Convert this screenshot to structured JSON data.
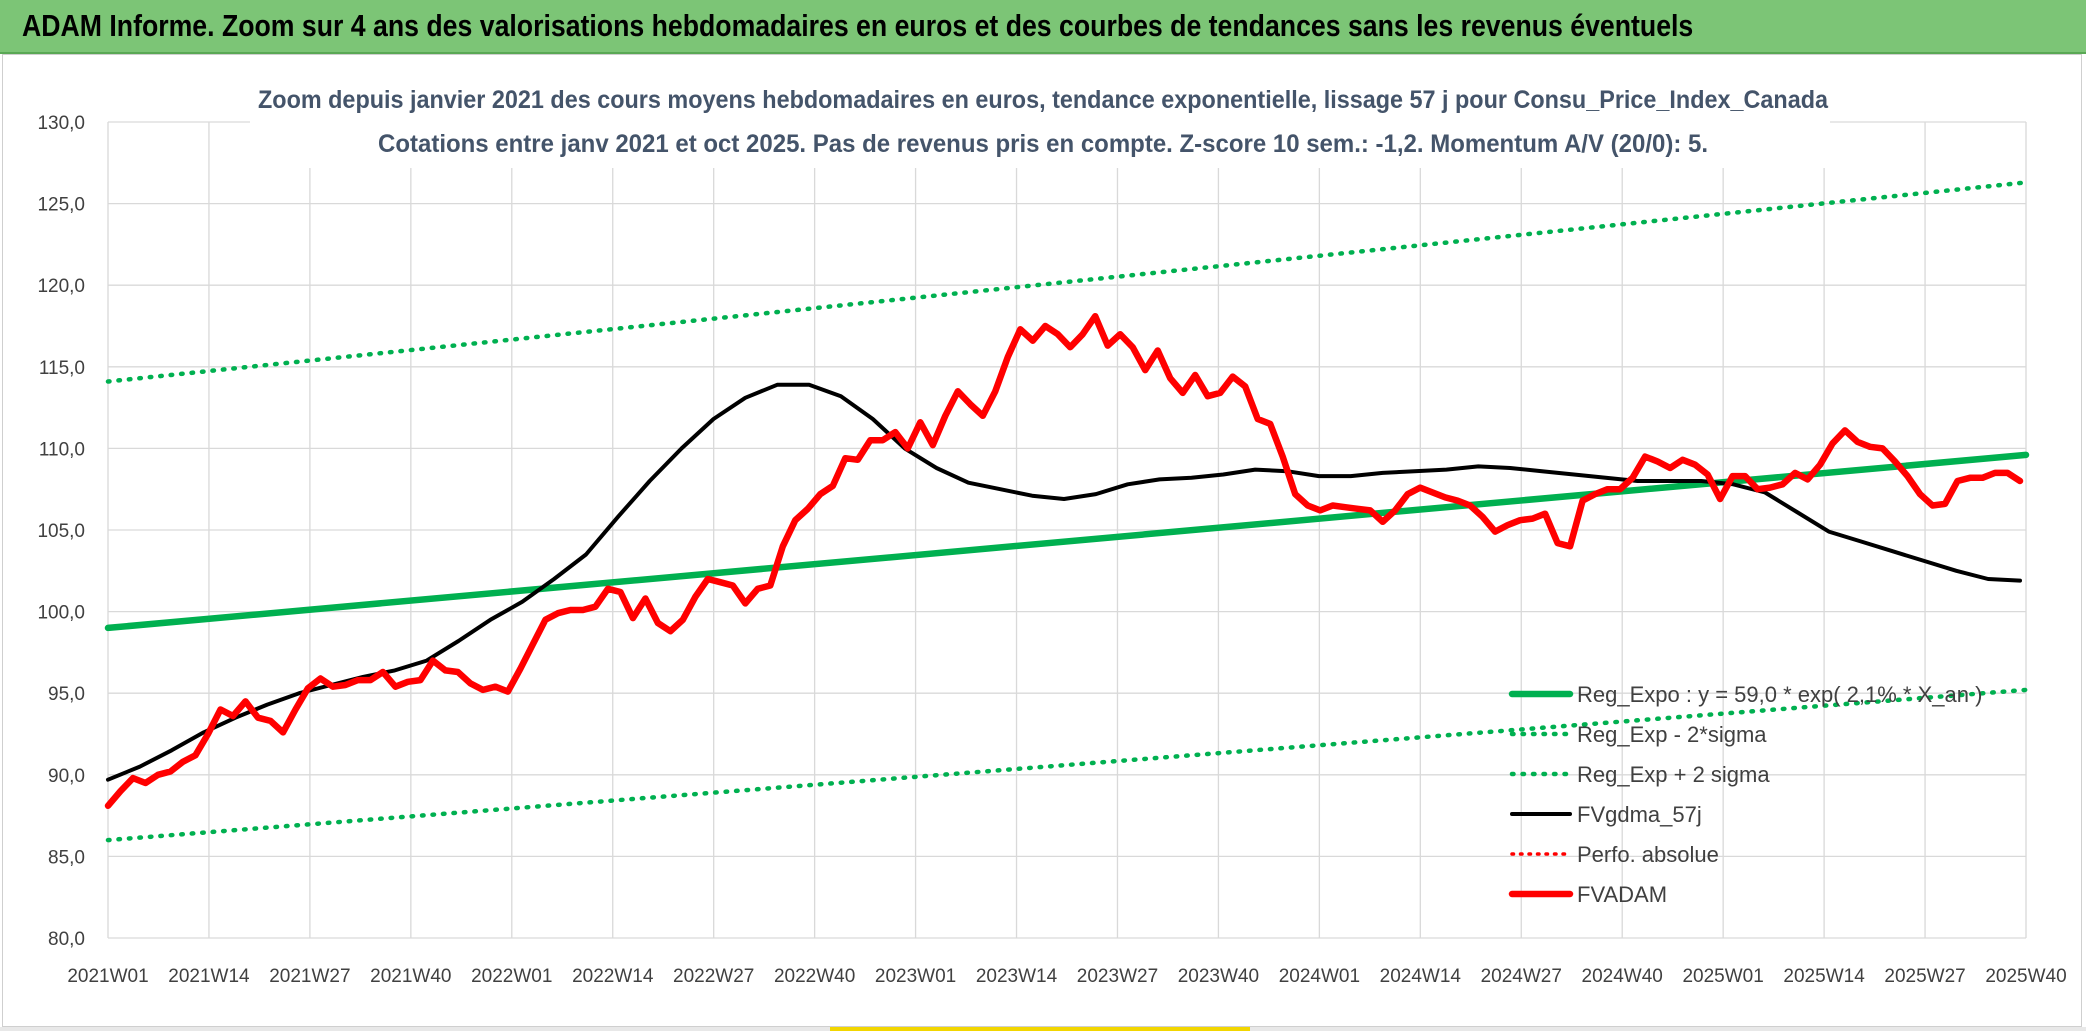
{
  "header": {
    "title": "ADAM Informe. Zoom sur 4 ans des valorisations hebdomadaires en euros et des courbes de tendances sans les revenus éventuels"
  },
  "colors": {
    "banner": "#7cc576",
    "reg_expo": "#00b050",
    "fvgdma": "#000000",
    "fvadam": "#ff0000",
    "perfo": "#ff0000",
    "grid": "#d9d9d9"
  },
  "chart_data": {
    "type": "line",
    "title": [
      "Zoom depuis janvier 2021 des cours moyens hebdomadaires en euros, tendance exponentielle, lissage 57 j pour Consu_Price_Index_Canada",
      "Cotations entre janv 2021 et oct 2025. Pas de revenus pris en compte. Z-score 10 sem.: -1,2. Momentum A/V (20/0): 5."
    ],
    "xlabel": "",
    "ylabel": "",
    "ylim": [
      80,
      130
    ],
    "y_ticks": [
      "80,0",
      "85,0",
      "90,0",
      "95,0",
      "100,0",
      "105,0",
      "110,0",
      "115,0",
      "120,0",
      "125,0",
      "130,0"
    ],
    "x_ticks": [
      "2021W01",
      "2021W14",
      "2021W27",
      "2021W40",
      "2022W01",
      "2022W14",
      "2022W27",
      "2022W40",
      "2023W01",
      "2023W14",
      "2023W27",
      "2023W40",
      "2024W01",
      "2024W14",
      "2024W27",
      "2024W40",
      "2025W01",
      "2025W14",
      "2025W27",
      "2025W40"
    ],
    "n_weeks": 248,
    "grid": true,
    "legend_position": "bottom-right",
    "series": [
      {
        "name": "Reg_Expo : y = 59,0 * exp( 2,1% * X_an )",
        "style": "solid-green-thick",
        "points": [
          [
            0,
            99.0
          ],
          [
            247,
            109.6
          ]
        ]
      },
      {
        "name": "Reg_Exp - 2*sigma",
        "style": "dotted-green",
        "points": [
          [
            0,
            86.0
          ],
          [
            247,
            95.2
          ]
        ]
      },
      {
        "name": "Reg_Exp + 2 sigma",
        "style": "dotted-green",
        "points": [
          [
            0,
            114.1
          ],
          [
            247,
            126.3
          ]
        ]
      },
      {
        "name": "FVgdma_57j",
        "style": "solid-black",
        "points": [
          [
            0,
            89.7
          ],
          [
            5,
            90.5
          ],
          [
            10,
            91.5
          ],
          [
            15,
            92.6
          ],
          [
            20,
            93.5
          ],
          [
            25,
            94.3
          ],
          [
            30,
            95.0
          ],
          [
            35,
            95.5
          ],
          [
            40,
            96.0
          ],
          [
            45,
            96.4
          ],
          [
            50,
            97.0
          ],
          [
            55,
            98.2
          ],
          [
            60,
            99.5
          ],
          [
            65,
            100.6
          ],
          [
            70,
            102.0
          ],
          [
            75,
            103.5
          ],
          [
            80,
            105.8
          ],
          [
            85,
            108.0
          ],
          [
            90,
            110.0
          ],
          [
            95,
            111.8
          ],
          [
            100,
            113.1
          ],
          [
            105,
            113.9
          ],
          [
            110,
            113.9
          ],
          [
            115,
            113.2
          ],
          [
            120,
            111.8
          ],
          [
            125,
            110.0
          ],
          [
            130,
            108.8
          ],
          [
            135,
            107.9
          ],
          [
            140,
            107.5
          ],
          [
            145,
            107.1
          ],
          [
            150,
            106.9
          ],
          [
            155,
            107.2
          ],
          [
            160,
            107.8
          ],
          [
            165,
            108.1
          ],
          [
            170,
            108.2
          ],
          [
            175,
            108.4
          ],
          [
            180,
            108.7
          ],
          [
            185,
            108.6
          ],
          [
            190,
            108.3
          ],
          [
            195,
            108.3
          ],
          [
            200,
            108.5
          ],
          [
            205,
            108.6
          ],
          [
            210,
            108.7
          ],
          [
            215,
            108.9
          ],
          [
            220,
            108.8
          ],
          [
            225,
            108.6
          ],
          [
            230,
            108.4
          ],
          [
            235,
            108.2
          ],
          [
            240,
            108.0
          ],
          [
            245,
            108.0
          ],
          [
            250,
            108.0
          ],
          [
            255,
            107.8
          ],
          [
            260,
            107.3
          ],
          [
            265,
            106.1
          ],
          [
            270,
            104.9
          ],
          [
            275,
            104.3
          ],
          [
            280,
            103.7
          ],
          [
            285,
            103.1
          ],
          [
            290,
            102.5
          ],
          [
            295,
            102.0
          ],
          [
            300,
            101.9
          ]
        ]
      },
      {
        "name": "Perfo. absolue",
        "style": "dotted-red",
        "points": []
      },
      {
        "name": "FVADAM",
        "style": "solid-red-thick",
        "points": [
          [
            0,
            88.1
          ],
          [
            2,
            89.0
          ],
          [
            4,
            89.8
          ],
          [
            6,
            89.5
          ],
          [
            8,
            90.0
          ],
          [
            10,
            90.2
          ],
          [
            12,
            90.8
          ],
          [
            14,
            91.2
          ],
          [
            16,
            92.5
          ],
          [
            18,
            94.0
          ],
          [
            20,
            93.6
          ],
          [
            22,
            94.5
          ],
          [
            24,
            93.5
          ],
          [
            26,
            93.3
          ],
          [
            28,
            92.6
          ],
          [
            30,
            94.0
          ],
          [
            32,
            95.3
          ],
          [
            34,
            95.9
          ],
          [
            36,
            95.4
          ],
          [
            38,
            95.5
          ],
          [
            40,
            95.8
          ],
          [
            42,
            95.8
          ],
          [
            44,
            96.3
          ],
          [
            46,
            95.4
          ],
          [
            48,
            95.7
          ],
          [
            50,
            95.8
          ],
          [
            52,
            97.0
          ],
          [
            54,
            96.4
          ],
          [
            56,
            96.3
          ],
          [
            58,
            95.6
          ],
          [
            60,
            95.2
          ],
          [
            62,
            95.4
          ],
          [
            64,
            95.1
          ],
          [
            66,
            96.5
          ],
          [
            68,
            98.0
          ],
          [
            70,
            99.5
          ],
          [
            72,
            99.9
          ],
          [
            74,
            100.1
          ],
          [
            76,
            100.1
          ],
          [
            78,
            100.3
          ],
          [
            80,
            101.4
          ],
          [
            82,
            101.2
          ],
          [
            84,
            99.6
          ],
          [
            86,
            100.8
          ],
          [
            88,
            99.3
          ],
          [
            90,
            98.8
          ],
          [
            92,
            99.5
          ],
          [
            94,
            100.9
          ],
          [
            96,
            102.0
          ],
          [
            98,
            101.8
          ],
          [
            100,
            101.6
          ],
          [
            102,
            100.5
          ],
          [
            104,
            101.4
          ],
          [
            106,
            101.6
          ],
          [
            108,
            104.0
          ],
          [
            110,
            105.6
          ],
          [
            112,
            106.3
          ],
          [
            114,
            107.2
          ],
          [
            116,
            107.7
          ],
          [
            118,
            109.4
          ],
          [
            120,
            109.3
          ],
          [
            122,
            110.5
          ],
          [
            124,
            110.5
          ],
          [
            126,
            111.0
          ],
          [
            128,
            110.0
          ],
          [
            130,
            111.6
          ],
          [
            132,
            110.2
          ],
          [
            134,
            112.0
          ],
          [
            136,
            113.5
          ],
          [
            138,
            112.7
          ],
          [
            140,
            112.0
          ],
          [
            142,
            113.5
          ],
          [
            144,
            115.6
          ],
          [
            146,
            117.3
          ],
          [
            148,
            116.6
          ],
          [
            150,
            117.5
          ],
          [
            152,
            117.0
          ],
          [
            154,
            116.2
          ],
          [
            156,
            117.0
          ],
          [
            158,
            118.1
          ],
          [
            160,
            116.3
          ],
          [
            162,
            117.0
          ],
          [
            164,
            116.2
          ],
          [
            166,
            114.8
          ],
          [
            168,
            116.0
          ],
          [
            170,
            114.3
          ],
          [
            172,
            113.4
          ],
          [
            174,
            114.5
          ],
          [
            176,
            113.2
          ],
          [
            178,
            113.4
          ],
          [
            180,
            114.4
          ],
          [
            182,
            113.8
          ],
          [
            184,
            111.8
          ],
          [
            186,
            111.5
          ],
          [
            188,
            109.5
          ],
          [
            190,
            107.2
          ],
          [
            192,
            106.5
          ],
          [
            194,
            106.2
          ],
          [
            196,
            106.5
          ],
          [
            198,
            106.4
          ],
          [
            200,
            106.3
          ],
          [
            202,
            106.2
          ],
          [
            204,
            105.5
          ],
          [
            206,
            106.2
          ],
          [
            208,
            107.2
          ],
          [
            210,
            107.6
          ],
          [
            212,
            107.3
          ],
          [
            214,
            107.0
          ],
          [
            216,
            106.8
          ],
          [
            218,
            106.5
          ],
          [
            220,
            105.8
          ],
          [
            222,
            104.9
          ],
          [
            224,
            105.3
          ],
          [
            226,
            105.6
          ],
          [
            228,
            105.7
          ],
          [
            230,
            106.0
          ],
          [
            232,
            104.2
          ],
          [
            234,
            104.0
          ],
          [
            236,
            106.8
          ],
          [
            238,
            107.2
          ],
          [
            240,
            107.5
          ],
          [
            242,
            107.5
          ],
          [
            244,
            108.2
          ],
          [
            246,
            109.5
          ],
          [
            248,
            109.2
          ],
          [
            250,
            108.8
          ],
          [
            252,
            109.3
          ],
          [
            254,
            109.0
          ],
          [
            256,
            108.4
          ],
          [
            258,
            106.9
          ],
          [
            260,
            108.3
          ],
          [
            262,
            108.3
          ],
          [
            264,
            107.5
          ],
          [
            266,
            107.6
          ],
          [
            268,
            107.8
          ],
          [
            270,
            108.5
          ],
          [
            272,
            108.1
          ],
          [
            274,
            109.0
          ],
          [
            276,
            110.3
          ],
          [
            278,
            111.1
          ],
          [
            280,
            110.4
          ],
          [
            282,
            110.1
          ],
          [
            284,
            110.0
          ],
          [
            286,
            109.2
          ],
          [
            288,
            108.3
          ],
          [
            290,
            107.2
          ],
          [
            292,
            106.5
          ],
          [
            294,
            106.6
          ],
          [
            296,
            108.0
          ],
          [
            298,
            108.2
          ],
          [
            300,
            108.2
          ],
          [
            302,
            108.5
          ],
          [
            304,
            108.5
          ],
          [
            306,
            108.0
          ]
        ]
      }
    ]
  },
  "legend": [
    {
      "label": "Reg_Expo : y = 59,0 * exp( 2,1% * X_an )",
      "style": "solid-green"
    },
    {
      "label": "Reg_Exp - 2*sigma",
      "style": "dotted-green"
    },
    {
      "label": "Reg_Exp + 2 sigma",
      "style": "dotted-green"
    },
    {
      "label": "FVgdma_57j",
      "style": "solid-black"
    },
    {
      "label": "Perfo. absolue",
      "style": "dotted-red"
    },
    {
      "label": "FVADAM",
      "style": "solid-red"
    }
  ]
}
